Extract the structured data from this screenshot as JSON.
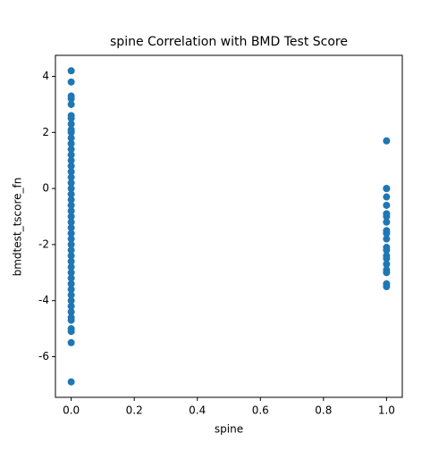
{
  "chart_data": {
    "type": "scatter",
    "title": "spine Correlation with BMD Test Score",
    "xlabel": "spine",
    "ylabel": "bmdtest_tscore_fn",
    "color": "#1f77b4",
    "x": [
      0,
      0,
      0,
      0,
      0,
      0,
      0,
      0,
      0,
      0,
      0,
      0,
      0,
      0,
      0,
      0,
      0,
      0,
      0,
      0,
      0,
      0,
      0,
      0,
      0,
      0,
      0,
      0,
      0,
      0,
      0,
      0,
      0,
      0,
      0,
      0,
      0,
      0,
      0,
      0,
      0,
      0,
      0,
      0,
      0,
      0,
      0,
      0,
      1,
      1,
      1,
      1,
      1,
      1,
      1,
      1,
      1,
      1,
      1,
      1,
      1,
      1,
      1,
      1,
      1,
      1,
      1,
      1
    ],
    "values": [
      4.2,
      3.8,
      3.3,
      3.2,
      3.0,
      2.6,
      2.5,
      2.3,
      2.1,
      2.0,
      1.8,
      1.6,
      1.4,
      1.2,
      1.0,
      0.8,
      0.6,
      0.4,
      0.2,
      0.0,
      -0.2,
      -0.4,
      -0.6,
      -0.8,
      -1.0,
      -1.2,
      -1.4,
      -1.6,
      -1.8,
      -2.0,
      -2.2,
      -2.4,
      -2.6,
      -2.8,
      -3.0,
      -3.2,
      -3.4,
      -3.6,
      -3.8,
      -4.0,
      -4.2,
      -4.4,
      -4.6,
      -4.7,
      -5.0,
      -5.1,
      -5.5,
      -6.9,
      1.7,
      0,
      0,
      -0.3,
      -0.6,
      -0.9,
      -1.0,
      -1.2,
      -1.5,
      -1.6,
      -1.8,
      -2.1,
      -2.2,
      -2.4,
      -2.5,
      -2.7,
      -2.9,
      -3.0,
      -3.4,
      -3.5
    ],
    "xlim": [
      -0.05,
      1.05
    ],
    "ylim": [
      -7.45,
      4.75
    ],
    "xticks": [
      {
        "value": 0,
        "label": "0.0"
      },
      0.2,
      0.4,
      0.6,
      0.8,
      {
        "value": 1,
        "label": "1.0"
      }
    ],
    "yticks": [
      -6,
      -4,
      -2,
      0,
      2,
      4
    ]
  }
}
